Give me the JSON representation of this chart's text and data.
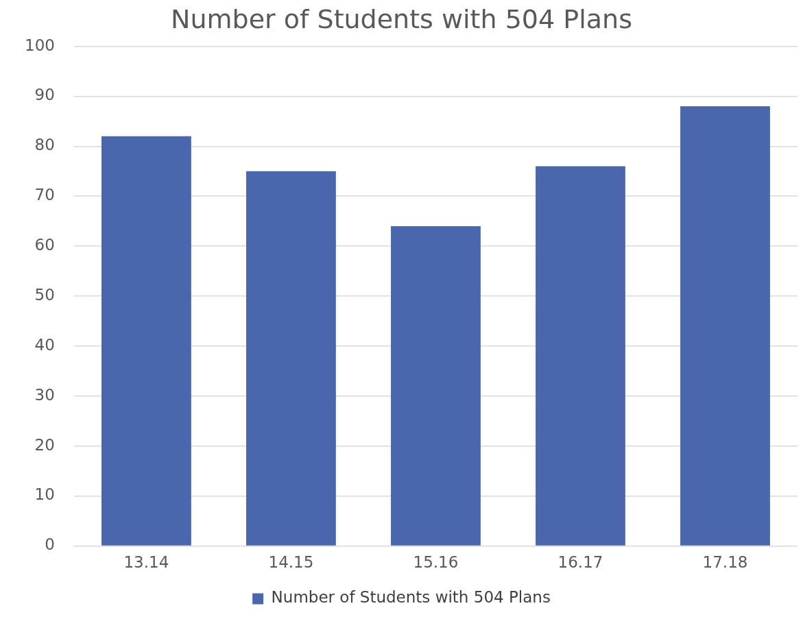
{
  "chart_data": {
    "type": "bar",
    "title": "Number of Students with 504 Plans",
    "categories": [
      "13.14",
      "14.15",
      "15.16",
      "16.17",
      "17.18"
    ],
    "series": [
      {
        "name": "Number of Students with 504 Plans",
        "color": "#4a66ac",
        "values": [
          82,
          75,
          64,
          76,
          88
        ]
      }
    ],
    "ylim": [
      0,
      100
    ],
    "yticks": [
      0,
      10,
      20,
      30,
      40,
      50,
      60,
      70,
      80,
      90,
      100
    ],
    "grid": "y",
    "legend": "bottom"
  }
}
